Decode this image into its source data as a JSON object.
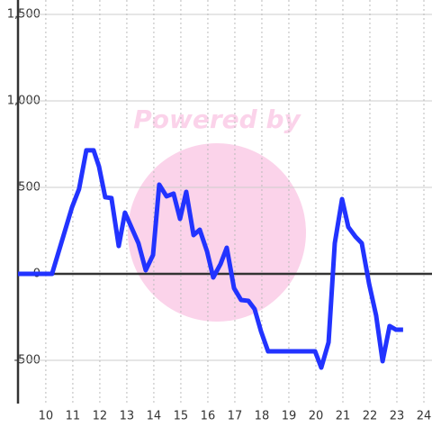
{
  "chart_data": {
    "type": "line",
    "watermark": "Powered by",
    "x": [
      8.97,
      10.23,
      10.97,
      11.23,
      11.5,
      11.77,
      11.97,
      12.2,
      12.43,
      12.7,
      12.93,
      13.43,
      13.7,
      13.97,
      14.2,
      14.47,
      14.73,
      14.97,
      15.2,
      15.47,
      15.7,
      15.97,
      16.2,
      16.47,
      16.7,
      16.97,
      17.23,
      17.5,
      17.73,
      17.97,
      18.23,
      19.97,
      20.2,
      20.47,
      20.7,
      20.97,
      21.2,
      21.47,
      21.7,
      21.97,
      22.23,
      22.47,
      22.73,
      22.97,
      23.23
    ],
    "series": [
      {
        "color": "#2233ff",
        "values": [
          0,
          0,
          385,
          490,
          714,
          714,
          620,
          443,
          438,
          161,
          354,
          177,
          21,
          109,
          516,
          448,
          464,
          318,
          474,
          224,
          255,
          130,
          -21,
          57,
          151,
          -83,
          -151,
          -156,
          -203,
          -333,
          -448,
          -448,
          -542,
          -396,
          177,
          432,
          271,
          214,
          177,
          -57,
          -240,
          -505,
          -302,
          -323,
          -323
        ]
      }
    ],
    "xlim": [
      8.97,
      24.3
    ],
    "xticks": [
      10,
      11,
      12,
      13,
      14,
      15,
      16,
      17,
      18,
      19,
      20,
      21,
      22,
      23,
      24
    ],
    "ylim": [
      -750,
      1500
    ],
    "yticks": [
      {
        "value": -500,
        "label": "-500"
      },
      0,
      500,
      {
        "value": 1000,
        "label": "1,000"
      },
      {
        "value": 1500,
        "label": "1,500"
      }
    ],
    "grid": true
  }
}
